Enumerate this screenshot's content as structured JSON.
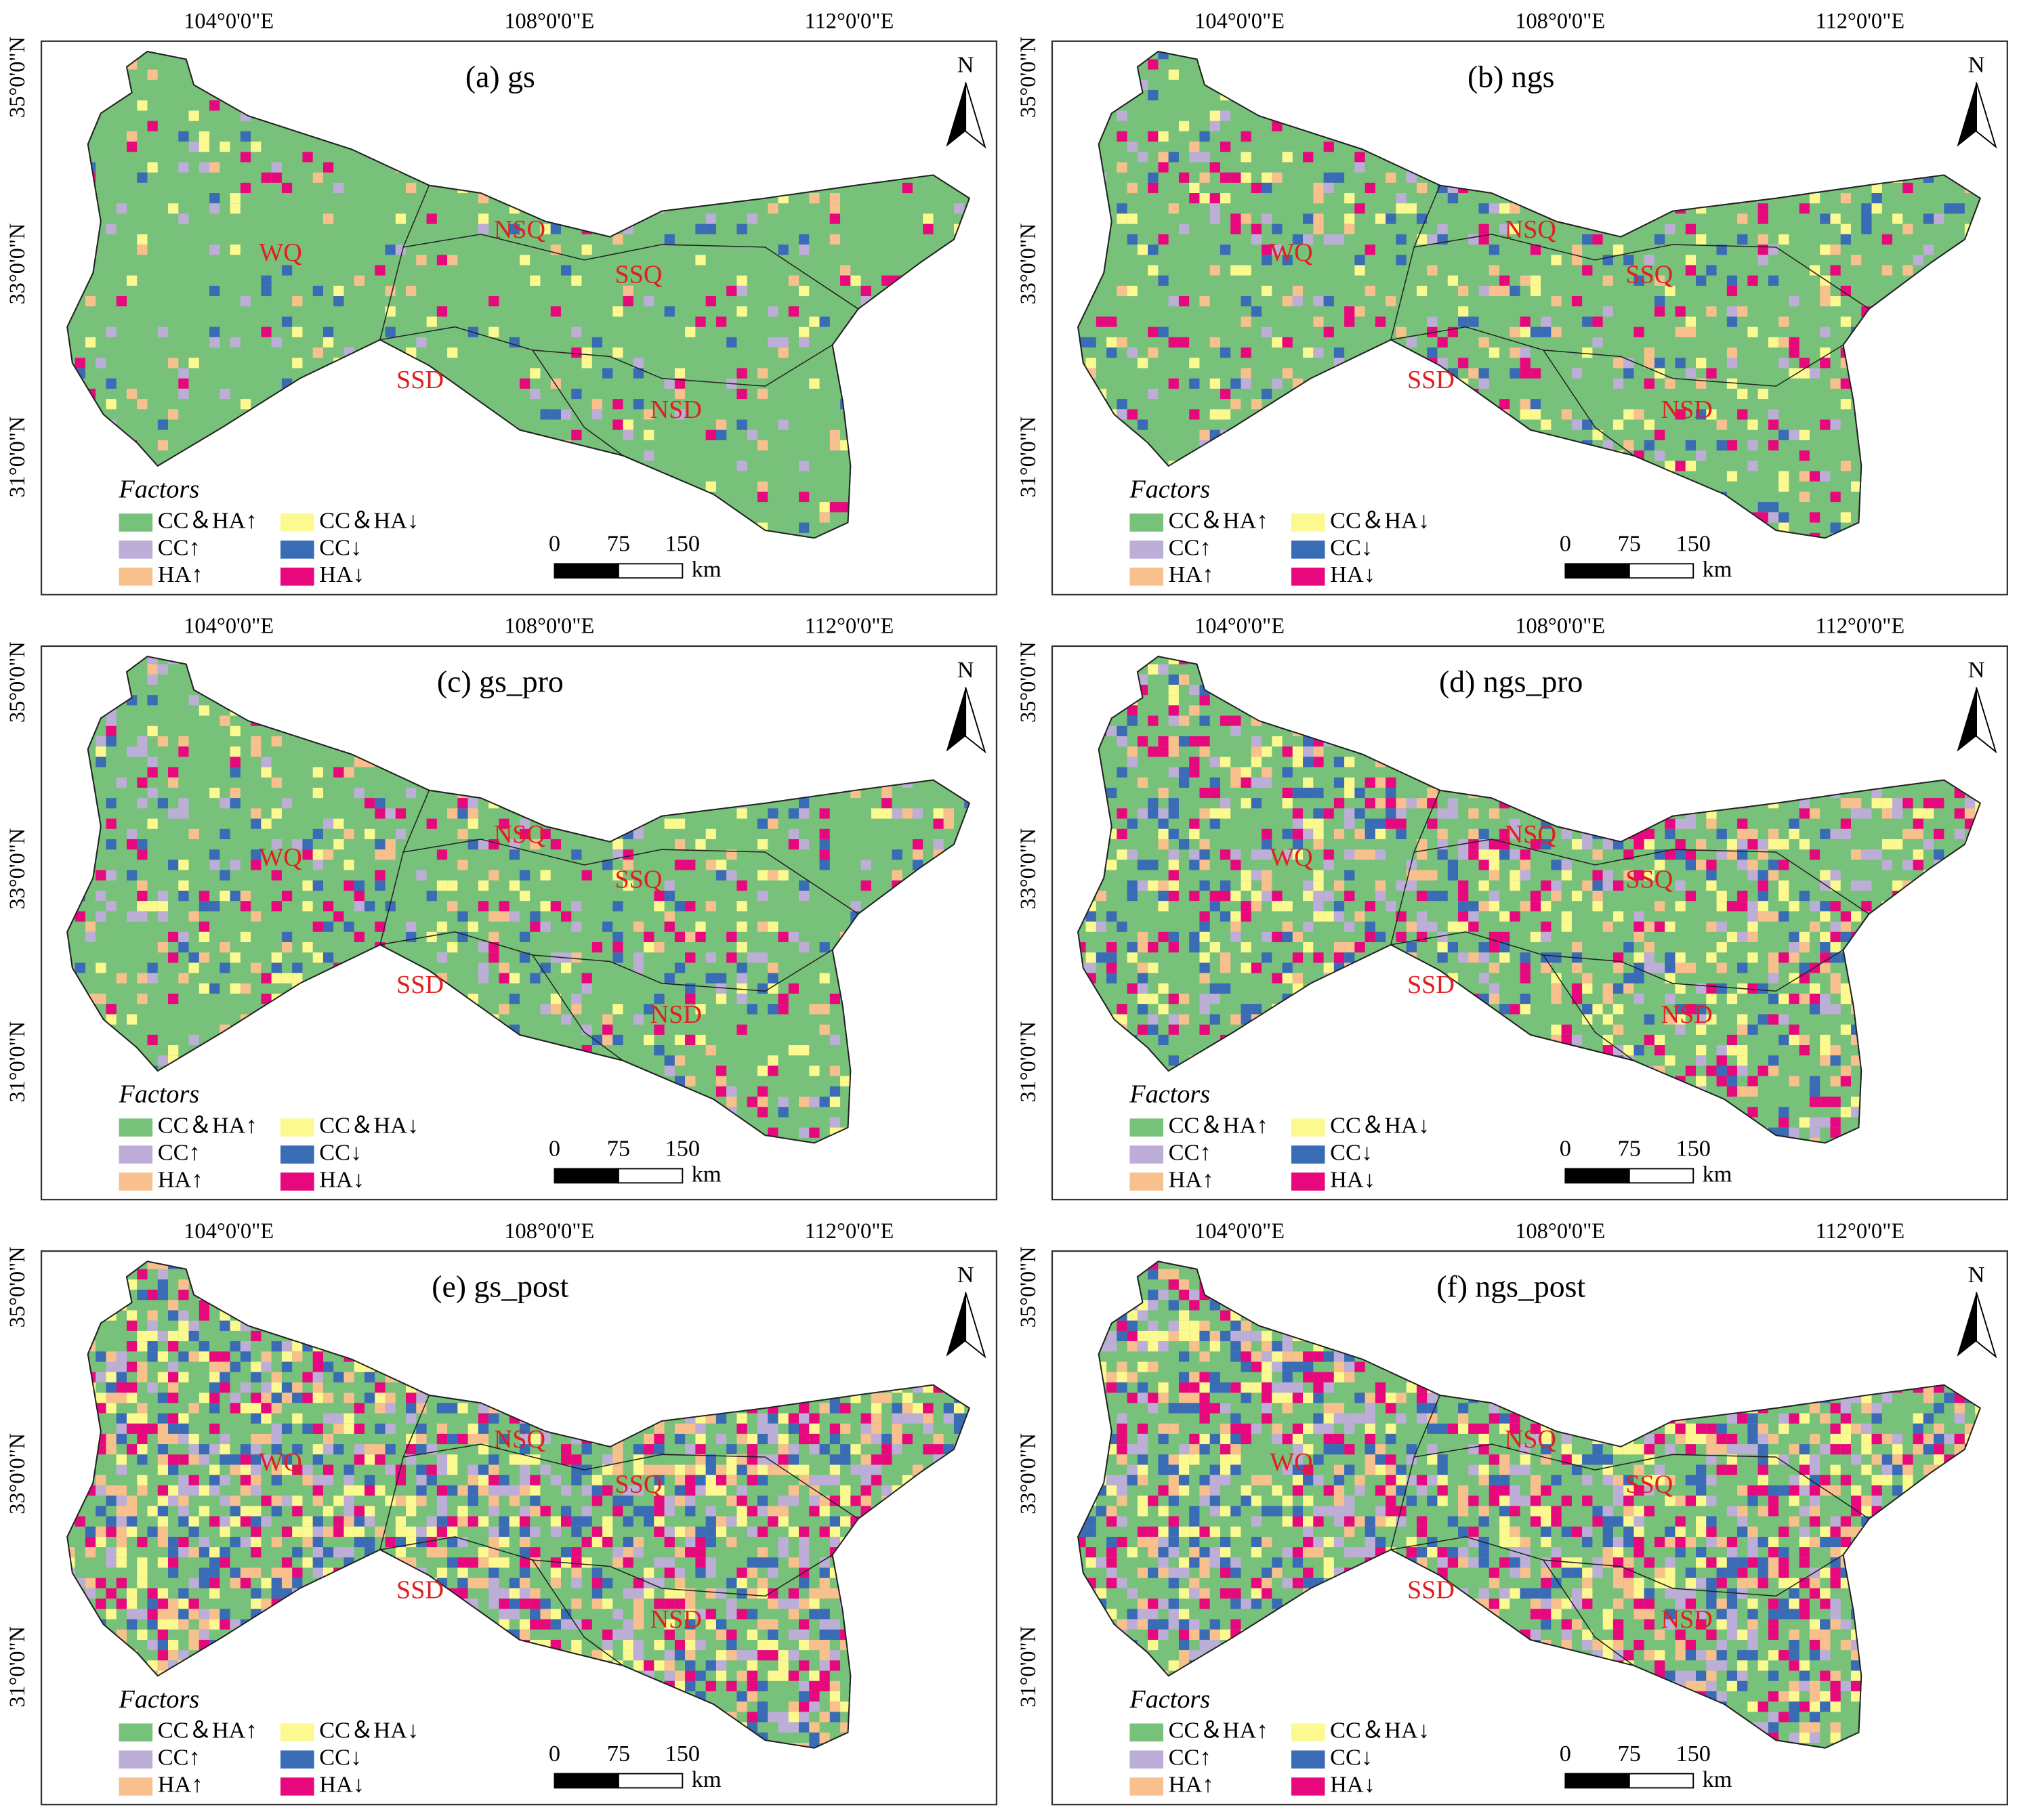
{
  "figure": {
    "panels": [
      {
        "title": "(a) gs"
      },
      {
        "title": "(b) ngs"
      },
      {
        "title": "(c) gs_pro"
      },
      {
        "title": "(d) ngs_pro"
      },
      {
        "title": "(e) gs_post"
      },
      {
        "title": "(f) ngs_post"
      }
    ],
    "longitude_labels": [
      "104°0'0\"E",
      "108°0'0\"E",
      "112°0'0\"E"
    ],
    "latitude_labels": [
      "35°0'0\"N",
      "33°0'0\"N",
      "31°0'0\"N"
    ],
    "north_label": "N",
    "region_labels": [
      "WQ",
      "NSQ",
      "SSQ",
      "SSD",
      "NSD"
    ],
    "legend": {
      "title": "Factors",
      "items": [
        {
          "label": "CC＆HA↑",
          "color": "#77c17a"
        },
        {
          "label": "CC＆HA↓",
          "color": "#fbf98f"
        },
        {
          "label": "CC↑",
          "color": "#bcaed6"
        },
        {
          "label": "CC↓",
          "color": "#3a6bb5"
        },
        {
          "label": "HA↑",
          "color": "#f7c08c"
        },
        {
          "label": "HA↓",
          "color": "#e8087e"
        }
      ]
    },
    "scale_bar": {
      "ticks": [
        0,
        75,
        150
      ],
      "unit": "km"
    }
  }
}
